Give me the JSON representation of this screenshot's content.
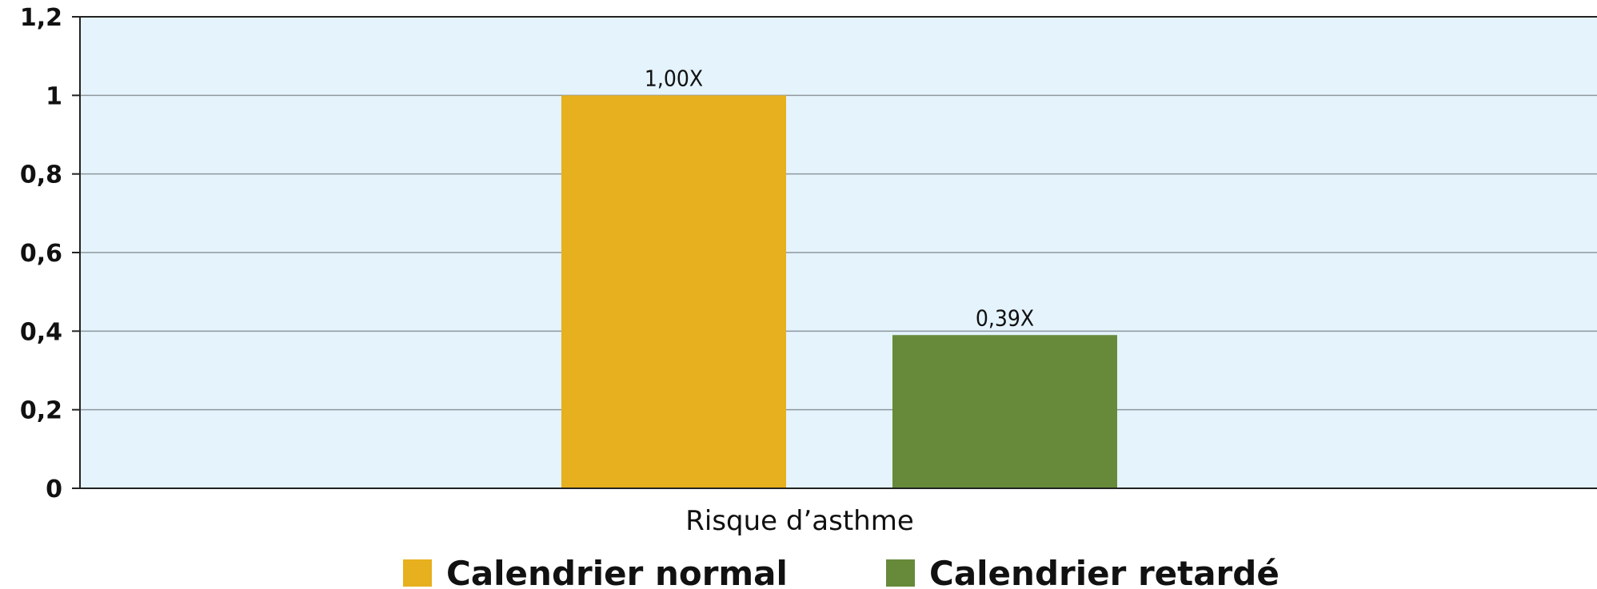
{
  "chart_data": {
    "type": "bar",
    "categories": [
      "Risque d’asthme"
    ],
    "series": [
      {
        "name": "Calendrier normal",
        "values": [
          1.0
        ],
        "data_label": "1,00X",
        "color": "#E6B01E"
      },
      {
        "name": "Calendrier retardé",
        "values": [
          0.39
        ],
        "data_label": "0,39X",
        "color": "#668A3A"
      }
    ],
    "ylim": [
      0,
      1.2
    ],
    "yticks": [
      0,
      0.2,
      0.4,
      0.6,
      0.8,
      1,
      1.2
    ],
    "ytick_labels": [
      "0",
      "0,2",
      "0,4",
      "0,6",
      "0,8",
      "1",
      "1,2"
    ],
    "grid": true,
    "legend": "bottom",
    "plot_background": "#E4F3FC",
    "title": "",
    "xlabel": "",
    "ylabel": ""
  }
}
